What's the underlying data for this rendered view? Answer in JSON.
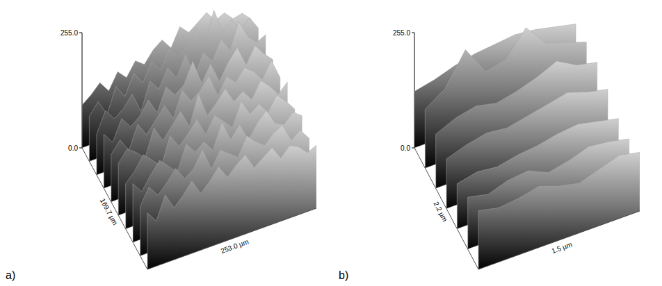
{
  "chart_data": [
    {
      "type": "surface",
      "panel_label": "a)",
      "x_label": "253.0 µm",
      "y_label": "169.7 µm",
      "zlim": [
        0,
        255
      ],
      "zticks": [
        {
          "value": 0,
          "label": "0.0"
        },
        {
          "value": 255,
          "label": "255.0"
        }
      ],
      "z": [
        [
          95,
          110,
          130,
          105,
          140,
          120,
          150,
          135,
          160,
          175,
          150,
          190,
          170,
          185,
          200,
          175,
          185,
          165,
          170,
          150
        ],
        [
          100,
          125,
          90,
          145,
          115,
          160,
          130,
          170,
          145,
          185,
          160,
          175,
          210,
          165,
          235,
          180,
          200,
          170,
          190,
          160
        ],
        [
          90,
          135,
          110,
          125,
          150,
          105,
          165,
          140,
          180,
          150,
          195,
          140,
          185,
          160,
          200,
          170,
          225,
          185,
          165,
          175
        ],
        [
          120,
          95,
          140,
          115,
          130,
          160,
          125,
          175,
          150,
          165,
          210,
          155,
          190,
          145,
          180,
          205,
          160,
          195,
          170,
          150
        ],
        [
          105,
          130,
          100,
          150,
          120,
          145,
          170,
          135,
          190,
          160,
          175,
          200,
          150,
          185,
          165,
          190,
          175,
          150,
          185,
          140
        ],
        [
          115,
          140,
          125,
          105,
          165,
          130,
          155,
          180,
          140,
          205,
          150,
          170,
          195,
          160,
          175,
          150,
          185,
          165,
          140,
          160
        ],
        [
          100,
          120,
          150,
          130,
          110,
          170,
          140,
          160,
          185,
          145,
          180,
          160,
          140,
          190,
          155,
          170,
          145,
          175,
          155,
          130
        ],
        [
          130,
          105,
          135,
          160,
          140,
          120,
          175,
          150,
          165,
          140,
          195,
          150,
          175,
          135,
          165,
          185,
          150,
          140,
          160,
          145
        ],
        [
          110,
          145,
          120,
          140,
          165,
          135,
          150,
          185,
          135,
          170,
          155,
          140,
          180,
          160,
          145,
          165,
          175,
          135,
          150,
          125
        ],
        [
          125,
          100,
          150,
          115,
          135,
          160,
          125,
          145,
          170,
          140,
          160,
          175,
          140,
          155,
          170,
          140,
          160,
          150,
          130,
          140
        ]
      ]
    },
    {
      "type": "surface",
      "panel_label": "b)",
      "x_label": "1.5 µm",
      "y_label": "2.2 µm",
      "zlim": [
        0,
        255
      ],
      "zticks": [
        {
          "value": 0,
          "label": "0.0"
        },
        {
          "value": 255,
          "label": "255.0"
        }
      ],
      "z": [
        [
          125,
          135,
          150,
          160,
          165,
          170,
          165,
          155,
          145
        ],
        [
          130,
          160,
          230,
          165,
          175,
          230,
          180,
          165,
          150
        ],
        [
          120,
          140,
          150,
          140,
          150,
          165,
          185,
          160,
          150
        ],
        [
          110,
          125,
          135,
          130,
          140,
          150,
          160,
          145,
          135
        ],
        [
          100,
          110,
          105,
          115,
          120,
          130,
          135,
          125,
          115
        ],
        [
          115,
          105,
          120,
          125,
          105,
          115,
          130,
          125,
          115
        ],
        [
          130,
          120,
          125,
          135,
          120,
          110,
          125,
          140,
          130
        ]
      ]
    }
  ]
}
